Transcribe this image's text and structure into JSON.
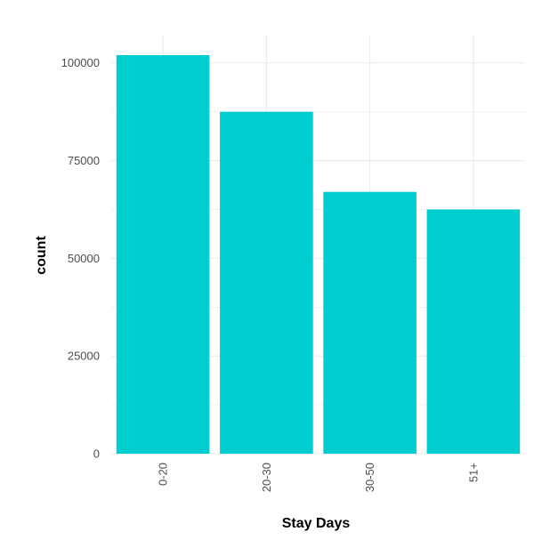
{
  "chart_data": {
    "type": "bar",
    "xlabel": "Stay Days",
    "ylabel": "count",
    "categories": [
      "0-20",
      "20-30",
      "30-50",
      "51+"
    ],
    "values": [
      102000,
      87500,
      67000,
      62500
    ],
    "ylim": [
      0,
      107000
    ],
    "yticks": [
      0,
      25000,
      50000,
      75000,
      100000
    ],
    "ytick_labels": [
      "0",
      "25000",
      "50000",
      "75000",
      "100000"
    ],
    "grid": true,
    "bar_color": "#00CDCD",
    "grid_color": "#EBEBEB"
  }
}
